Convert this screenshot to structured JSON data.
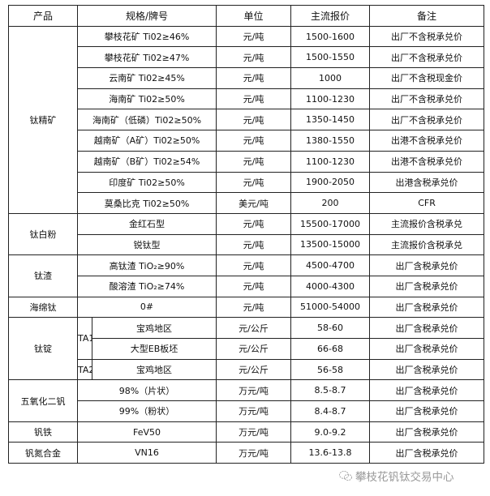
{
  "headers": [
    "产品",
    "规格/牌号",
    "单位",
    "主流报价",
    "备注"
  ],
  "groups": [
    {
      "product": "钛精矿",
      "rows": [
        {
          "spec": "攀枝花矿 Ti02≥46%",
          "unit": "元/吨",
          "price": "1500-1600",
          "note": "出厂不含税承兑价"
        },
        {
          "spec": "攀枝花矿 Ti02≥47%",
          "unit": "元/吨",
          "price": "1500-1550",
          "note": "出厂不含税承兑价"
        },
        {
          "spec": "云南矿 Ti02≥45%",
          "unit": "元/吨",
          "price": "1000",
          "note": "出厂不含税现金价"
        },
        {
          "spec": "海南矿 Ti02≥50%",
          "unit": "元/吨",
          "price": "1100-1230",
          "note": "出厂不含税承兑价"
        },
        {
          "spec": "海南矿（低磷）Ti02≥50%",
          "unit": "元/吨",
          "price": "1350-1450",
          "note": "出厂不含税承兑价"
        },
        {
          "spec": "越南矿（A矿）Ti02≥50%",
          "unit": "元/吨",
          "price": "1380-1550",
          "note": "出港不含税承兑价"
        },
        {
          "spec": "越南矿（B矿）Ti02≥54%",
          "unit": "元/吨",
          "price": "1100-1230",
          "note": "出港不含税承兑价"
        },
        {
          "spec": "印度矿 Ti02≥50%",
          "unit": "元/吨",
          "price": "1900-2050",
          "note": "出港含税承兑价"
        },
        {
          "spec": "莫桑比克 Ti02≥50%",
          "unit": "美元/吨",
          "price": "200",
          "note": "CFR"
        }
      ]
    },
    {
      "product": "钛白粉",
      "rows": [
        {
          "spec": "金红石型",
          "unit": "元/吨",
          "price": "15500-17000",
          "note": "主流报价含税承兑"
        },
        {
          "spec": "锐钛型",
          "unit": "元/吨",
          "price": "13500-15000",
          "note": "主流报价含税承兑"
        }
      ]
    },
    {
      "product": "钛渣",
      "rows": [
        {
          "spec": "高钛渣 TiO₂≥90%",
          "unit": "元/吨",
          "price": "4500-4700",
          "note": "出厂含税承兑价"
        },
        {
          "spec": "酸溶渣 TiO₂≥74%",
          "unit": "元/吨",
          "price": "4000-4300",
          "note": "出厂含税承兑价"
        }
      ]
    },
    {
      "product": "海绵钛",
      "rows": [
        {
          "spec": "0#",
          "unit": "元/吨",
          "price": "51000-54000",
          "note": "出厂含税承兑价"
        }
      ]
    },
    {
      "product": "钛锭",
      "rows": [
        {
          "grade": "TA1",
          "spec": "宝鸡地区",
          "unit": "元/公斤",
          "price": "58-60",
          "note": "出厂含税承兑价"
        },
        {
          "grade": "TA1",
          "spec": "大型EB板坯",
          "unit": "元/公斤",
          "price": "66-68",
          "note": "出厂含税承兑价"
        },
        {
          "grade": "TA2",
          "spec": "宝鸡地区",
          "unit": "元/公斤",
          "price": "56-58",
          "note": "出厂含税承兑价"
        }
      ]
    },
    {
      "product": "五氧化二钒",
      "rows": [
        {
          "spec": "98%（片状）",
          "unit": "万元/吨",
          "price": "8.5-8.7",
          "note": "出厂含税承兑价"
        },
        {
          "spec": "99%（粉状）",
          "unit": "万元/吨",
          "price": "8.4-8.7",
          "note": "出厂含税承兑价"
        }
      ]
    },
    {
      "product": "钒铁",
      "rows": [
        {
          "spec": "FeV50",
          "unit": "万元/吨",
          "price": "9.0-9.2",
          "note": "出厂含税承兑价"
        }
      ]
    },
    {
      "product": "钒氮合金",
      "rows": [
        {
          "spec": "VN16",
          "unit": "万元/吨",
          "price": "13.6-13.8",
          "note": "出厂含税承兑价"
        }
      ]
    }
  ],
  "watermark": {
    "text": "攀枝花钒钛交易中心",
    "icon": "wechat-icon"
  }
}
